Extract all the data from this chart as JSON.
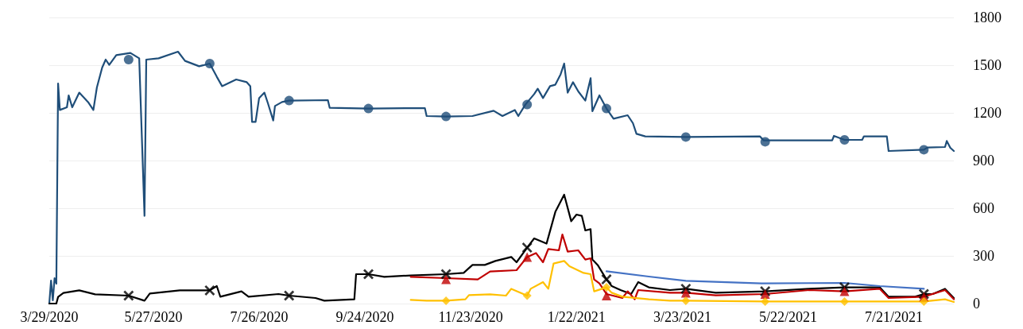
{
  "chart_data": {
    "type": "line",
    "grid": "y",
    "line_style": "solid",
    "xlim": [
      "2020-03-29",
      "2021-08-24"
    ],
    "xticks": [
      {
        "value": "2020-03-29",
        "label": "3/29/2020"
      },
      {
        "value": "2020-05-27",
        "label": "5/27/2020"
      },
      {
        "value": "2020-07-26",
        "label": "7/26/2020"
      },
      {
        "value": "2020-09-24",
        "label": "9/24/2020"
      },
      {
        "value": "2020-11-23",
        "label": "11/23/2020"
      },
      {
        "value": "2021-01-22",
        "label": "1/22/2021"
      },
      {
        "value": "2021-03-23",
        "label": "3/23/2021"
      },
      {
        "value": "2021-05-22",
        "label": "5/22/2021"
      },
      {
        "value": "2021-07-21",
        "label": "7/21/2021"
      }
    ],
    "ylim": [
      0,
      1800
    ],
    "yticks": [
      0,
      300,
      600,
      900,
      1200,
      1500,
      1800
    ],
    "series": [
      {
        "color": "#1f4e79",
        "marker": "none",
        "x": [
          "2020-03-29",
          "2020-03-30",
          "2020-03-31",
          "2020-04-01",
          "2020-04-02",
          "2020-04-03",
          "2020-04-04",
          "2020-04-08",
          "2020-04-09",
          "2020-04-11",
          "2020-04-15",
          "2020-04-20",
          "2020-04-23",
          "2020-04-25",
          "2020-04-28",
          "2020-04-30",
          "2020-05-02",
          "2020-05-06",
          "2020-05-14",
          "2020-05-19",
          "2020-05-22",
          "2020-05-23",
          "2020-05-30",
          "2020-06-10",
          "2020-06-14",
          "2020-06-22",
          "2020-06-28",
          "2020-07-02",
          "2020-07-05",
          "2020-07-13",
          "2020-07-19",
          "2020-07-21",
          "2020-07-22",
          "2020-07-24",
          "2020-07-26",
          "2020-07-29",
          "2020-07-31",
          "2020-08-03",
          "2020-08-04",
          "2020-08-08",
          "2020-08-12",
          "2020-09-03",
          "2020-09-04",
          "2020-09-26",
          "2020-10-28",
          "2020-10-29",
          "2020-11-09",
          "2020-11-24",
          "2020-12-06",
          "2020-12-11",
          "2020-12-18",
          "2020-12-20",
          "2020-12-24",
          "2020-12-29",
          "2020-12-31",
          "2021-01-03",
          "2021-01-07",
          "2021-01-10",
          "2021-01-13",
          "2021-01-15",
          "2021-01-17",
          "2021-01-20",
          "2021-01-23",
          "2021-01-27",
          "2021-01-30",
          "2021-01-31",
          "2021-02-04",
          "2021-02-08",
          "2021-02-12",
          "2021-02-20",
          "2021-02-23",
          "2021-02-25",
          "2021-03-02",
          "2021-03-25",
          "2021-05-06",
          "2021-05-08",
          "2021-06-16",
          "2021-06-17",
          "2021-06-23",
          "2021-07-03",
          "2021-07-04",
          "2021-07-17",
          "2021-07-18",
          "2021-08-07",
          "2021-08-09",
          "2021-08-19",
          "2021-08-20",
          "2021-08-22",
          "2021-08-24"
        ],
        "values": [
          0,
          145,
          20,
          160,
          125,
          1385,
          1218,
          1235,
          1310,
          1235,
          1327,
          1268,
          1218,
          1360,
          1485,
          1535,
          1502,
          1563,
          1577,
          1543,
          552,
          1535,
          1543,
          1585,
          1527,
          1493,
          1510,
          1427,
          1368,
          1410,
          1393,
          1368,
          1143,
          1143,
          1293,
          1327,
          1260,
          1152,
          1243,
          1268,
          1277,
          1280,
          1232,
          1227,
          1230,
          1180,
          1177,
          1180,
          1213,
          1180,
          1218,
          1180,
          1252,
          1318,
          1352,
          1293,
          1368,
          1377,
          1443,
          1510,
          1327,
          1393,
          1335,
          1277,
          1418,
          1210,
          1310,
          1227,
          1163,
          1185,
          1135,
          1068,
          1052,
          1048,
          1052,
          1027,
          1027,
          1055,
          1030,
          1030,
          1052,
          1052,
          960,
          968,
          982,
          985,
          1023,
          980,
          960
        ]
      },
      {
        "color": "#000000",
        "marker": "none",
        "x": [
          "2020-03-29",
          "2020-04-02",
          "2020-04-03",
          "2020-04-06",
          "2020-04-15",
          "2020-04-24",
          "2020-05-13",
          "2020-05-22",
          "2020-05-25",
          "2020-06-11",
          "2020-06-20",
          "2020-06-28",
          "2020-07-02",
          "2020-07-04",
          "2020-07-16",
          "2020-07-20",
          "2020-08-06",
          "2020-08-12",
          "2020-08-27",
          "2020-09-01",
          "2020-09-18",
          "2020-09-19",
          "2020-09-26",
          "2020-10-05",
          "2020-10-20",
          "2020-11-09",
          "2020-11-19",
          "2020-11-24",
          "2020-12-01",
          "2020-12-07",
          "2020-12-16",
          "2020-12-19",
          "2020-12-25",
          "2020-12-29",
          "2021-01-05",
          "2021-01-10",
          "2021-01-15",
          "2021-01-17",
          "2021-01-19",
          "2021-01-22",
          "2021-01-25",
          "2021-01-27",
          "2021-01-30",
          "2021-01-31",
          "2021-02-03",
          "2021-02-08",
          "2021-02-11",
          "2021-02-16",
          "2021-02-22",
          "2021-02-26",
          "2021-03-04",
          "2021-03-16",
          "2021-03-25",
          "2021-04-11",
          "2021-05-09",
          "2021-06-03",
          "2021-06-23",
          "2021-07-13",
          "2021-07-18",
          "2021-08-02",
          "2021-08-07",
          "2021-08-12",
          "2021-08-19",
          "2021-08-24"
        ],
        "values": [
          0,
          0,
          42,
          67,
          83,
          58,
          50,
          18,
          63,
          83,
          83,
          83,
          110,
          43,
          77,
          43,
          60,
          50,
          35,
          18,
          27,
          185,
          185,
          168,
          177,
          185,
          193,
          243,
          243,
          268,
          293,
          260,
          352,
          410,
          377,
          577,
          685,
          602,
          518,
          560,
          552,
          460,
          468,
          277,
          243,
          152,
          110,
          85,
          60,
          135,
          102,
          85,
          93,
          68,
          77,
          93,
          102,
          102,
          43,
          43,
          60,
          60,
          93,
          35
        ]
      },
      {
        "color": "#c00000",
        "marker": "none",
        "x": [
          "2020-10-20",
          "2020-11-09",
          "2020-11-27",
          "2020-12-04",
          "2020-12-19",
          "2020-12-25",
          "2020-12-30",
          "2021-01-03",
          "2021-01-06",
          "2021-01-12",
          "2021-01-14",
          "2021-01-17",
          "2021-01-23",
          "2021-01-27",
          "2021-01-30",
          "2021-02-01",
          "2021-02-04",
          "2021-02-08",
          "2021-02-17",
          "2021-02-20",
          "2021-02-24",
          "2021-02-26",
          "2021-03-16",
          "2021-03-25",
          "2021-04-11",
          "2021-05-09",
          "2021-06-03",
          "2021-06-23",
          "2021-07-13",
          "2021-07-18",
          "2021-08-07",
          "2021-08-19",
          "2021-08-24"
        ],
        "values": [
          168,
          160,
          152,
          202,
          210,
          293,
          318,
          260,
          343,
          335,
          435,
          327,
          335,
          277,
          285,
          152,
          127,
          60,
          35,
          77,
          27,
          85,
          68,
          68,
          52,
          60,
          85,
          77,
          93,
          35,
          43,
          85,
          27
        ]
      },
      {
        "color": "#ffc000",
        "marker": "none",
        "x": [
          "2020-10-20",
          "2020-10-29",
          "2020-11-09",
          "2020-11-20",
          "2020-11-22",
          "2020-12-04",
          "2020-12-13",
          "2020-12-16",
          "2020-12-25",
          "2020-12-27",
          "2021-01-03",
          "2021-01-06",
          "2021-01-09",
          "2021-01-15",
          "2021-01-18",
          "2021-01-26",
          "2021-01-30",
          "2021-02-01",
          "2021-02-08",
          "2021-02-11",
          "2021-02-17",
          "2021-03-04",
          "2021-03-16",
          "2021-03-25",
          "2021-05-09",
          "2021-06-23",
          "2021-08-07",
          "2021-08-19",
          "2021-08-24"
        ],
        "values": [
          23,
          18,
          18,
          27,
          53,
          58,
          50,
          93,
          50,
          93,
          135,
          93,
          252,
          268,
          235,
          193,
          185,
          77,
          102,
          68,
          43,
          27,
          18,
          18,
          13,
          13,
          13,
          27,
          10
        ]
      },
      {
        "color": "#4472c4",
        "marker": "none",
        "x": [
          "2021-02-08",
          "2021-03-04",
          "2021-03-25",
          "2021-05-07",
          "2021-06-23",
          "2021-07-13",
          "2021-08-07"
        ],
        "values": [
          203,
          170,
          143,
          127,
          130,
          110,
          93
        ]
      },
      {
        "type": "scatter",
        "color": "#1f4e79",
        "marker": "circle",
        "x": [
          "2020-05-13",
          "2020-06-28",
          "2020-08-12",
          "2020-09-26",
          "2020-11-09",
          "2020-12-25",
          "2021-02-08",
          "2021-03-25",
          "2021-05-09",
          "2021-06-23",
          "2021-08-07"
        ],
        "values": [
          1535,
          1510,
          1277,
          1227,
          1177,
          1252,
          1227,
          1048,
          1018,
          1030,
          968
        ]
      },
      {
        "type": "scatter",
        "color": "#000000",
        "marker": "cross",
        "x": [
          "2020-05-13",
          "2020-06-28",
          "2020-08-12",
          "2020-09-26",
          "2020-11-09",
          "2020-12-25",
          "2021-02-08",
          "2021-03-25",
          "2021-05-09",
          "2021-06-23",
          "2021-08-07"
        ],
        "values": [
          50,
          83,
          50,
          185,
          185,
          352,
          152,
          93,
          77,
          102,
          60
        ]
      },
      {
        "type": "scatter",
        "color": "#c00000",
        "marker": "triangle",
        "x": [
          "2020-11-09",
          "2020-12-25",
          "2021-02-08",
          "2021-03-25",
          "2021-05-09",
          "2021-06-23",
          "2021-08-07"
        ],
        "values": [
          152,
          293,
          50,
          68,
          60,
          77,
          43
        ]
      },
      {
        "type": "scatter",
        "color": "#ffc000",
        "marker": "diamond",
        "x": [
          "2020-11-09",
          "2020-12-25",
          "2021-02-08",
          "2021-03-25",
          "2021-05-09",
          "2021-06-23",
          "2021-08-07"
        ],
        "values": [
          18,
          50,
          102,
          18,
          13,
          13,
          13
        ]
      }
    ]
  }
}
